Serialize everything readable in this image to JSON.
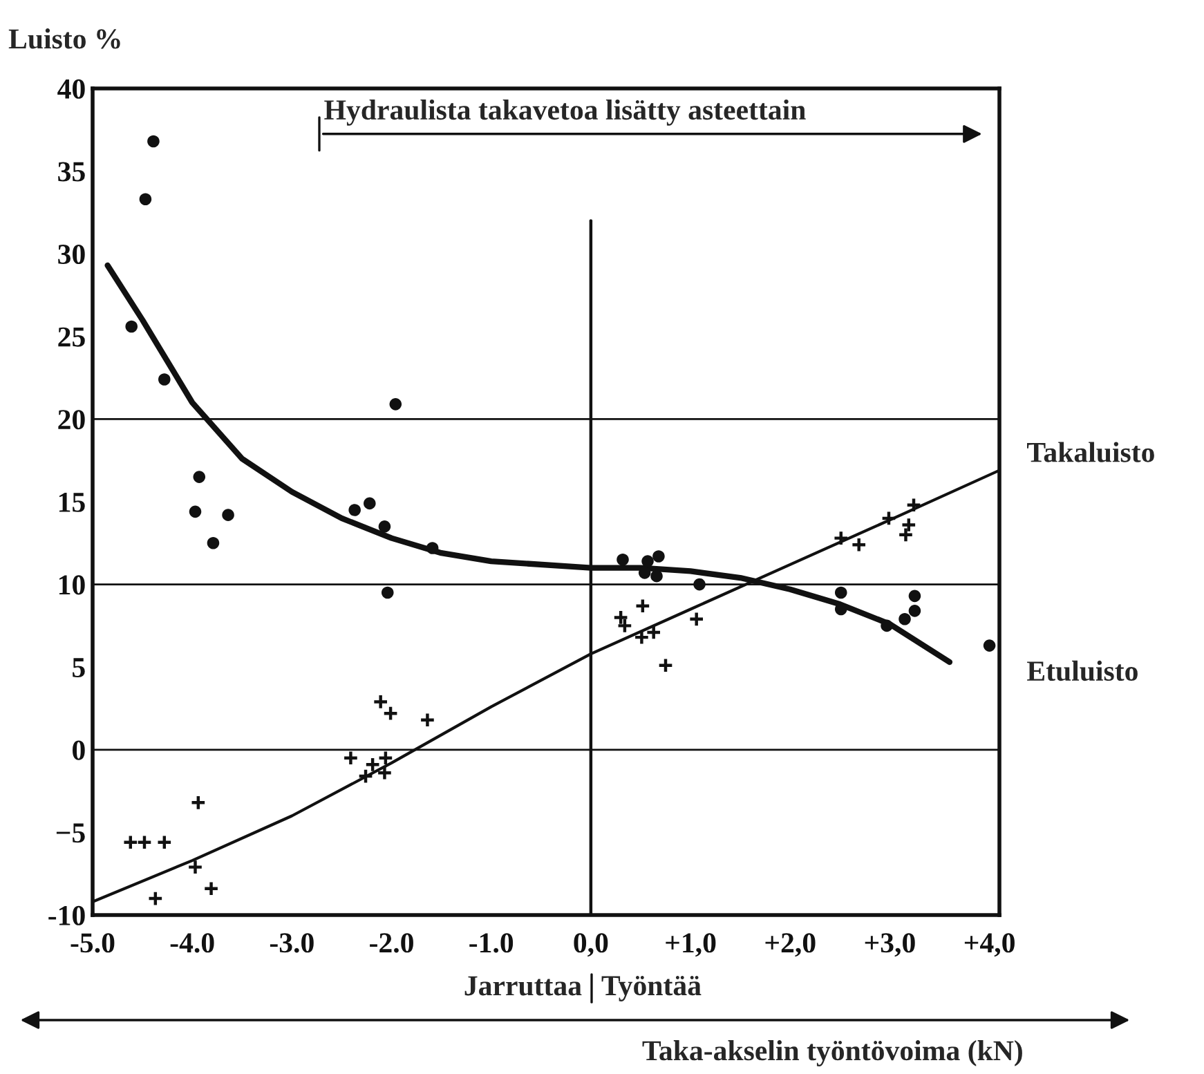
{
  "chart_data": {
    "type": "scatter",
    "ylabel": "Luisto %",
    "xlabel": "Taka-akselin työntövoima (kN)",
    "xlim": [
      -5.0,
      4.1
    ],
    "ylim": [
      -10,
      40
    ],
    "xticks": [
      {
        "value": -5,
        "label": "-5.0"
      },
      {
        "value": -4,
        "label": "-4.0"
      },
      {
        "value": -3,
        "label": "-3.0"
      },
      {
        "value": -2,
        "label": "-2.0"
      },
      {
        "value": -1,
        "label": "-1.0"
      },
      {
        "value": 0,
        "label": "0,0"
      },
      {
        "value": 1,
        "label": "+1,0"
      },
      {
        "value": 2,
        "label": "+2,0"
      },
      {
        "value": 3,
        "label": "+3,0"
      },
      {
        "value": 4,
        "label": "+4,0"
      }
    ],
    "yticks": [
      {
        "value": -10,
        "label": "-10"
      },
      {
        "value": -5,
        "label": "−5"
      },
      0,
      5,
      10,
      15,
      20,
      25,
      30,
      35,
      40
    ],
    "grid": false,
    "legend": false,
    "ref_lines": [
      {
        "axis": "y",
        "value": 0
      },
      {
        "axis": "y",
        "value": 10
      },
      {
        "axis": "y",
        "value": 20
      },
      {
        "axis": "x",
        "value": 0
      }
    ],
    "annotations": [
      "Hydraulista takavetoa lisätty asteettain",
      "Jarruttaa",
      "Työntää"
    ],
    "series": [
      {
        "marker": "circle",
        "color": "#111111",
        "x": [
          -4.39,
          -4.47,
          -4.61,
          -4.28,
          -1.96,
          -3.93,
          -3.97,
          -3.64,
          -3.79,
          -2.37,
          -2.22,
          -2.07,
          -1.59,
          -2.04,
          0.32,
          0.57,
          0.68,
          0.54,
          0.66,
          1.09,
          2.51,
          2.51,
          2.97,
          3.15,
          3.25,
          3.25,
          4.0
        ],
        "values": [
          36.8,
          33.3,
          25.6,
          22.4,
          20.9,
          16.5,
          14.4,
          14.2,
          12.5,
          14.5,
          14.9,
          13.5,
          12.2,
          9.5,
          11.5,
          11.4,
          11.7,
          10.7,
          10.5,
          10.0,
          9.5,
          8.5,
          7.5,
          7.9,
          9.3,
          8.4,
          6.3
        ]
      },
      {
        "marker": "cross",
        "color": "#111111",
        "x": [
          -4.62,
          -4.48,
          -4.28,
          -3.94,
          -3.97,
          -3.81,
          -4.37,
          -2.41,
          -2.26,
          -2.19,
          -2.07,
          -2.06,
          -2.11,
          -2.01,
          -1.64,
          0.3,
          0.34,
          0.52,
          0.51,
          0.63,
          0.75,
          1.06,
          2.51,
          2.69,
          2.99,
          3.24,
          3.19,
          3.16
        ],
        "values": [
          -5.6,
          -5.6,
          -5.6,
          -3.2,
          -7.1,
          -8.4,
          -9.0,
          -0.5,
          -1.6,
          -0.9,
          -1.4,
          -0.5,
          2.9,
          2.2,
          1.8,
          8.0,
          7.5,
          8.7,
          6.8,
          7.1,
          5.1,
          7.9,
          12.8,
          12.4,
          14.0,
          14.8,
          13.6,
          13.0
        ]
      },
      {
        "type": "line",
        "name": "Etuluisto",
        "color": "#111111",
        "x": [
          -4.85,
          -4.5,
          -4.0,
          -3.5,
          -3.0,
          -2.5,
          -2.0,
          -1.5,
          -1.0,
          0.0,
          0.5,
          1.0,
          1.5,
          2.0,
          2.5,
          3.0,
          3.6
        ],
        "values": [
          29.3,
          26.0,
          21.0,
          17.6,
          15.6,
          14.0,
          12.8,
          11.9,
          11.4,
          11.0,
          11.0,
          10.8,
          10.4,
          9.7,
          8.8,
          7.6,
          5.3
        ]
      },
      {
        "type": "line",
        "name": "Takaluisto",
        "color": "#111111",
        "x": [
          -5.0,
          -4.0,
          -3.0,
          -2.0,
          -1.0,
          0.0,
          1.0,
          2.0,
          3.0,
          4.1
        ],
        "values": [
          -9.2,
          -6.7,
          -4.0,
          -0.8,
          2.6,
          5.8,
          8.5,
          11.2,
          13.9,
          16.9
        ]
      }
    ]
  }
}
